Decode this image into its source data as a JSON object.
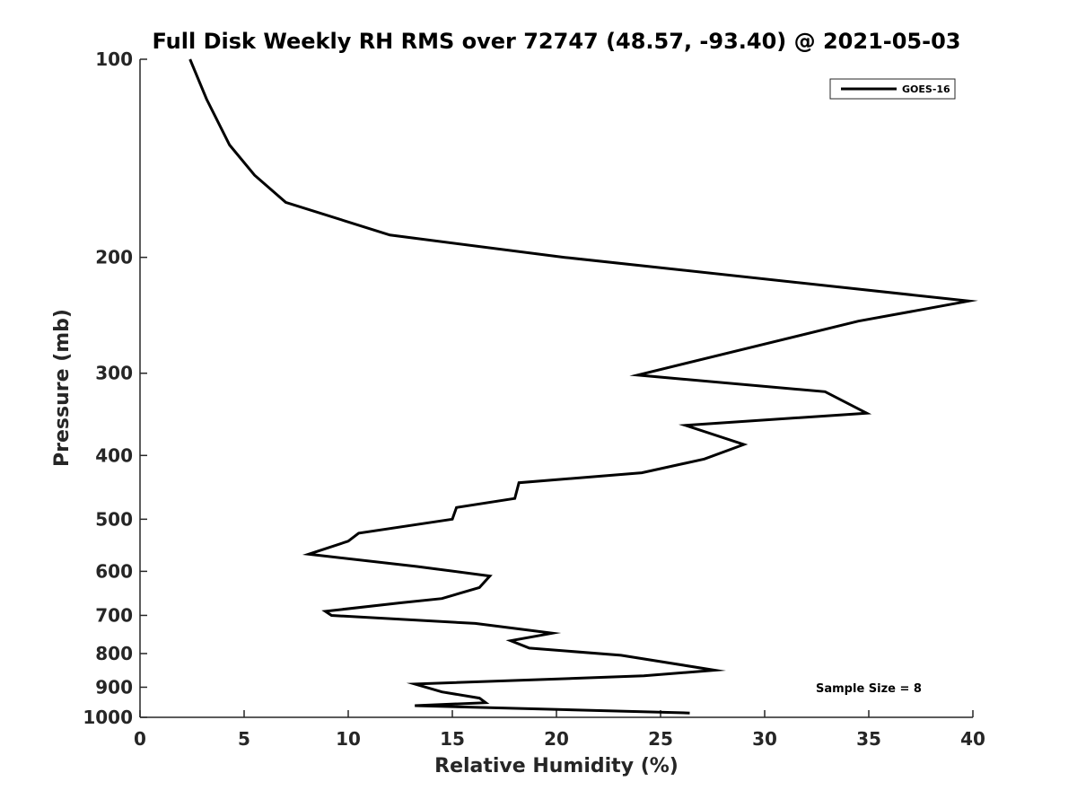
{
  "chart_data": {
    "type": "line",
    "title": "Full Disk Weekly RH RMS over 72747 (48.57, -93.40) @ 2021-05-03",
    "xlabel": "Relative Humidity (%)",
    "ylabel": "Pressure (mb)",
    "xlim": [
      0,
      40
    ],
    "ylim": [
      100,
      1000
    ],
    "y_scale": "log",
    "y_reversed": true,
    "x_ticks": [
      0,
      5,
      10,
      15,
      20,
      25,
      30,
      35,
      40
    ],
    "y_ticks": [
      100,
      200,
      300,
      400,
      500,
      600,
      700,
      800,
      900,
      1000
    ],
    "grid": false,
    "legend": "top-right",
    "annotation": "Sample Size = 8",
    "series": [
      {
        "name": "GOES-16",
        "color": "#000000",
        "points": [
          [
            2.4,
            100
          ],
          [
            3.2,
            115
          ],
          [
            4.3,
            135
          ],
          [
            5.5,
            150
          ],
          [
            7.0,
            165
          ],
          [
            12.0,
            185
          ],
          [
            20.4,
            200
          ],
          [
            39.8,
            233
          ],
          [
            34.5,
            250
          ],
          [
            23.9,
            302
          ],
          [
            32.9,
            320
          ],
          [
            34.9,
            345
          ],
          [
            26.2,
            360
          ],
          [
            29.0,
            385
          ],
          [
            27.1,
            405
          ],
          [
            24.1,
            425
          ],
          [
            18.2,
            440
          ],
          [
            18.0,
            465
          ],
          [
            15.2,
            480
          ],
          [
            15.0,
            500
          ],
          [
            10.5,
            525
          ],
          [
            10.0,
            540
          ],
          [
            8.1,
            565
          ],
          [
            13.3,
            590
          ],
          [
            16.8,
            610
          ],
          [
            16.3,
            635
          ],
          [
            14.5,
            660
          ],
          [
            12.5,
            670
          ],
          [
            8.9,
            690
          ],
          [
            9.2,
            700
          ],
          [
            16.1,
            720
          ],
          [
            19.8,
            745
          ],
          [
            17.8,
            765
          ],
          [
            18.7,
            785
          ],
          [
            23.1,
            805
          ],
          [
            27.6,
            848
          ],
          [
            24.2,
            865
          ],
          [
            13.2,
            890
          ],
          [
            14.5,
            915
          ],
          [
            16.3,
            935
          ],
          [
            16.6,
            950
          ],
          [
            13.2,
            960
          ],
          [
            26.4,
            985
          ]
        ]
      }
    ]
  }
}
